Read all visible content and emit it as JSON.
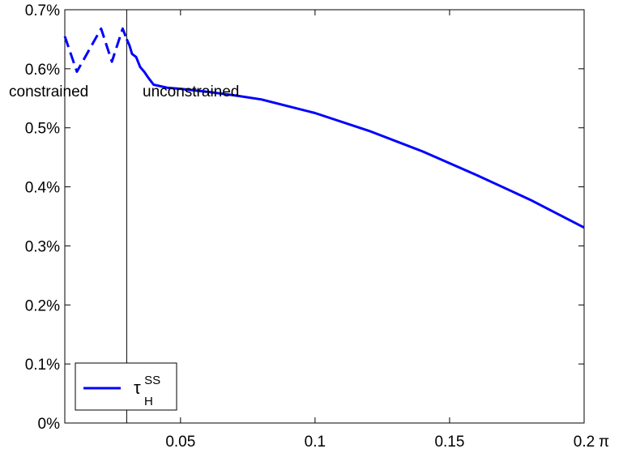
{
  "chart_data": {
    "type": "line",
    "title": "",
    "xlabel": "π",
    "ylabel": "",
    "xlim": [
      0.007,
      0.2
    ],
    "ylim": [
      0,
      0.7
    ],
    "grid": false,
    "x_ticks": [
      0.05,
      0.1,
      0.15,
      0.2
    ],
    "x_tick_labels": [
      "0.05",
      "0.1",
      "0.15",
      "0.2"
    ],
    "y_ticks": [
      0,
      0.1,
      0.2,
      0.3,
      0.4,
      0.5,
      0.6,
      0.7
    ],
    "y_tick_labels": [
      "0%",
      "0.1%",
      "0.2%",
      "0.3%",
      "0.4%",
      "0.5%",
      "0.6%",
      "0.7%"
    ],
    "series": [
      {
        "name": "τ_H^SS",
        "style": "dashed",
        "color": "#0000ff",
        "segment": "constrained",
        "x": [
          0.007,
          0.0115,
          0.0205,
          0.0245,
          0.0285,
          0.03
        ],
        "y": [
          0.655,
          0.595,
          0.668,
          0.612,
          0.668,
          0.65
        ]
      },
      {
        "name": "τ_H^SS",
        "style": "solid",
        "color": "#0000ff",
        "segment": "unconstrained",
        "x": [
          0.03,
          0.031,
          0.032,
          0.0335,
          0.035,
          0.0365,
          0.038,
          0.04,
          0.045,
          0.05,
          0.06,
          0.07,
          0.08,
          0.1,
          0.12,
          0.14,
          0.16,
          0.18,
          0.2
        ],
        "y": [
          0.65,
          0.64,
          0.625,
          0.62,
          0.603,
          0.595,
          0.585,
          0.573,
          0.568,
          0.566,
          0.561,
          0.555,
          0.548,
          0.525,
          0.495,
          0.46,
          0.42,
          0.378,
          0.331
        ]
      }
    ],
    "vline": 0.03,
    "annotations": [
      "constrained",
      "unconstrained"
    ],
    "legend": {
      "position": "bottom-left",
      "label_base": "τ",
      "label_sup": "SS",
      "label_sub": "H"
    }
  }
}
